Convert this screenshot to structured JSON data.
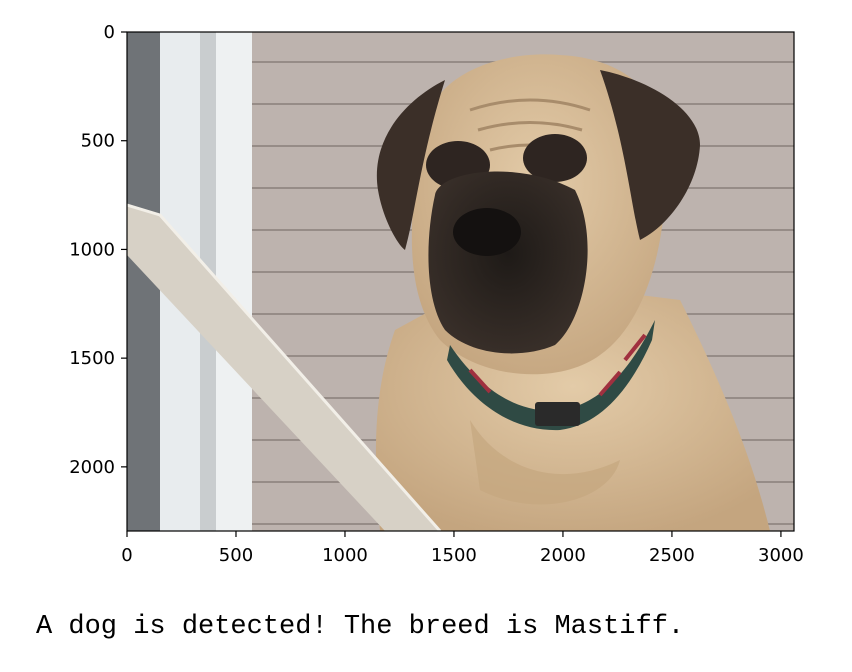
{
  "image": {
    "subject": "mastiff-dog-photo",
    "colors": {
      "siding": "#bdb3ae",
      "siding_line": "#968c87",
      "fur": "#d9bf9a",
      "fur_shadow": "#b89d78",
      "muzzle": "#2a2420",
      "ears": "#3b2f28",
      "collar": "#2f4a44",
      "collar_accent": "#a0303f",
      "post": "#6f7377",
      "trim": "#e8ecee",
      "rail": "#d7d1c6"
    }
  },
  "chart_data": {
    "type": "image",
    "x": {
      "lim": [
        0,
        3060
      ],
      "ticks": [
        0,
        500,
        1000,
        1500,
        2000,
        2500,
        3000
      ],
      "tick_labels": [
        "0",
        "500",
        "1000",
        "1500",
        "2000",
        "2500",
        "3000"
      ]
    },
    "y": {
      "lim": [
        0,
        2295
      ],
      "inverted": true,
      "ticks": [
        0,
        500,
        1000,
        1500,
        2000
      ],
      "tick_labels": [
        "0",
        "500",
        "1000",
        "1500",
        "2000"
      ]
    },
    "grid": false
  },
  "output": {
    "result_text": "A dog is detected! The breed is Mastiff."
  }
}
